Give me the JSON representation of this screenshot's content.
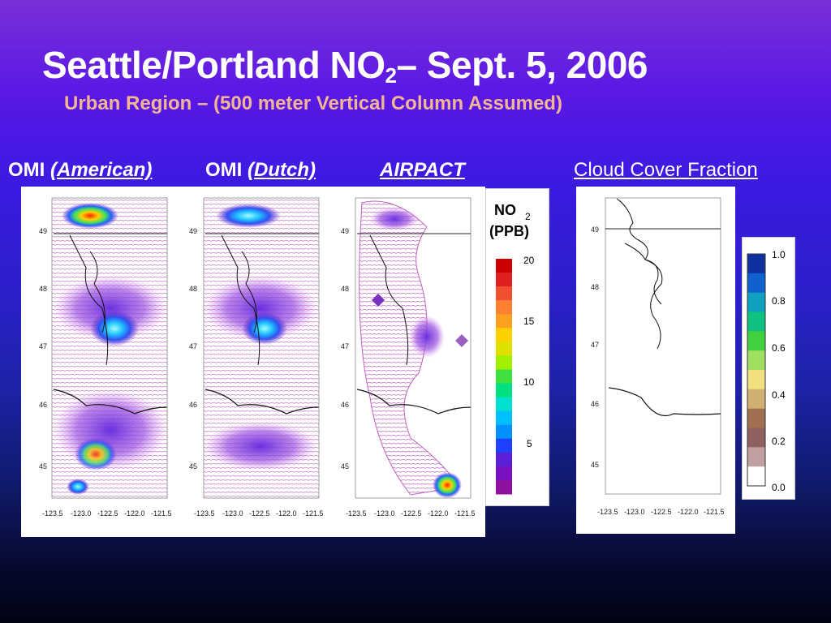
{
  "slide": {
    "title_main": "Seattle/Portland NO",
    "title_sub": "2",
    "title_rest": "– Sept. 5, 2006",
    "subtitle": "Urban Region – (500 meter Vertical Column Assumed)"
  },
  "labels": {
    "omi_american_prefix": "OMI ",
    "omi_american_italic": "(American)",
    "omi_dutch_prefix": "OMI ",
    "omi_dutch_italic": "(Dutch)",
    "airpact": "AIRPACT",
    "cloud": "Cloud Cover Fraction"
  },
  "axes": {
    "lat_ticks": [
      "49",
      "48",
      "47",
      "46",
      "45"
    ],
    "lon_ticks": [
      "-123.5",
      "-123.0",
      "-122.5",
      "-122.0",
      "-121.5"
    ]
  },
  "no2_legend": {
    "title_line1": "NO",
    "title_sub": "2",
    "title_line2": "(PPB)",
    "ticks": [
      "20",
      "15",
      "10",
      "5"
    ],
    "colors": [
      "#cc0000",
      "#e02020",
      "#f05030",
      "#ff8030",
      "#ffa020",
      "#ffd000",
      "#e0e000",
      "#a0f000",
      "#40e040",
      "#00e080",
      "#00e0d0",
      "#00c0ff",
      "#0090ff",
      "#2040ff",
      "#5a20d8",
      "#7a10c0",
      "#9010a0"
    ]
  },
  "cloud_legend": {
    "ticks": [
      "1.0",
      "0.8",
      "0.6",
      "0.4",
      "0.2",
      "0.0"
    ],
    "colors": [
      "#1030a0",
      "#1060d0",
      "#10a0c0",
      "#10c080",
      "#40d040",
      "#a0e060",
      "#f0e080",
      "#d0b070",
      "#a07050",
      "#906060",
      "#c0a0a0",
      "#ffffff"
    ]
  }
}
